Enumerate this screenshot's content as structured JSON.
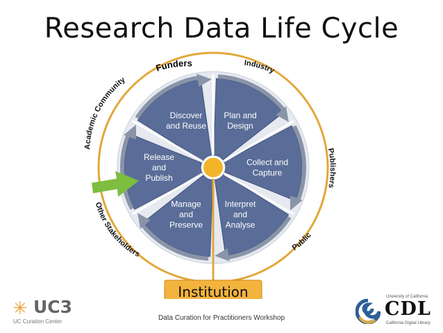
{
  "title": "Research Data Life Cycle",
  "diagram": {
    "segments": [
      {
        "label": [
          "Plan and",
          "Design"
        ]
      },
      {
        "label": [
          "Collect and",
          "Capture"
        ]
      },
      {
        "label": [
          "Interpret",
          "and",
          "Analyse"
        ]
      },
      {
        "label": [
          "Manage",
          "and",
          "Preserve"
        ]
      },
      {
        "label": [
          "Release",
          "and",
          "Publish"
        ]
      },
      {
        "label": [
          "Discover",
          "and Reuse"
        ]
      }
    ],
    "stakeholders": [
      "Funders",
      "Industry",
      "Publishers",
      "Public",
      "Other Stakeholders",
      "Academic Community"
    ],
    "institution": "Institution",
    "colors": {
      "segment": "#5a6d98",
      "segment_dark": "#3f517c",
      "arrow": "#8a94a8",
      "ring": "#e2a83a",
      "hub": "#f3b429",
      "pointer": "#7dbd3f",
      "institution_bg": "#f3b33d"
    }
  },
  "footer": "Data Curation for Practitioners Workshop",
  "logos": {
    "uc3": {
      "mark": "✳",
      "name": "UC3",
      "subtitle": "UC Curation Center"
    },
    "cdl": {
      "university": "University of California",
      "name": "CDL",
      "subtitle": "California Digital Library"
    }
  }
}
